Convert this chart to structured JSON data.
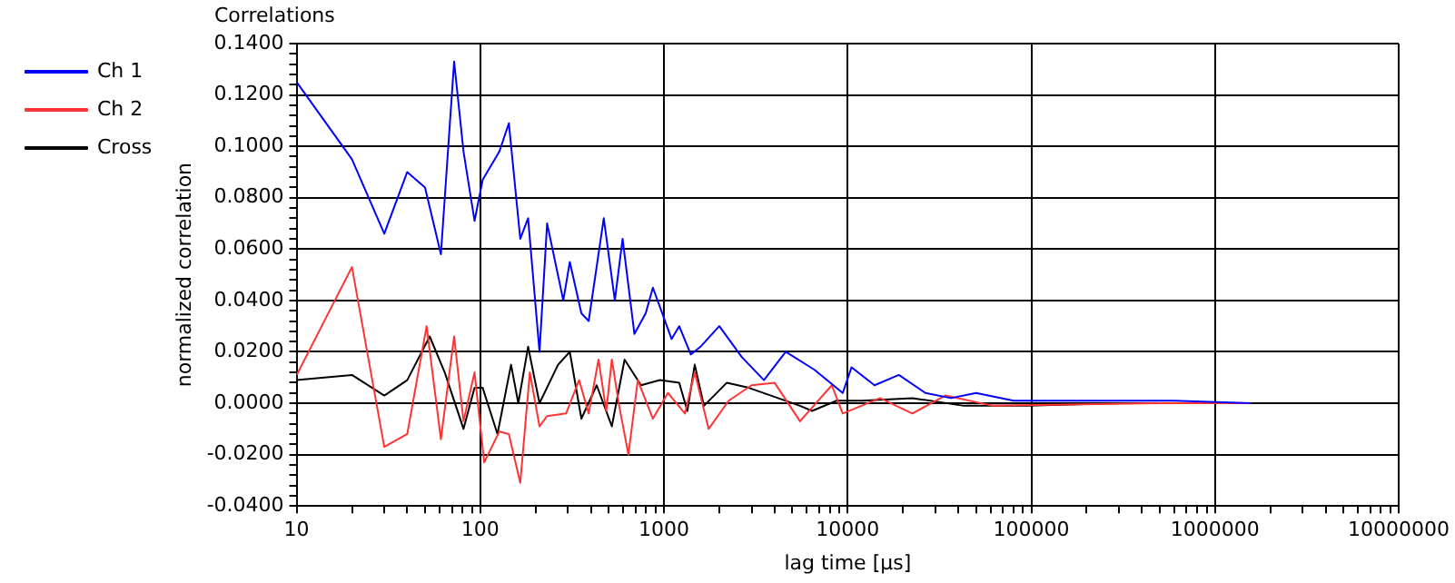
{
  "chart_data": {
    "type": "line",
    "title": "Correlations",
    "xlabel": "lag time [µs]",
    "ylabel": "normalized correlation",
    "log": "x",
    "grid": true,
    "legend": "top left",
    "marker": "none",
    "line_style": "solid",
    "xlim": [
      10,
      10000000
    ],
    "ylim": [
      -0.04,
      0.14
    ],
    "xticks": [
      10,
      {
        "value": 20,
        "label": null
      },
      {
        "value": 30,
        "label": null
      },
      {
        "value": 40,
        "label": null
      },
      {
        "value": 50,
        "label": null
      },
      {
        "value": 60,
        "label": null
      },
      {
        "value": 70,
        "label": null
      },
      {
        "value": 80,
        "label": null
      },
      {
        "value": 90,
        "label": null
      },
      100,
      {
        "value": 200,
        "label": null
      },
      {
        "value": 300,
        "label": null
      },
      {
        "value": 400,
        "label": null
      },
      {
        "value": 500,
        "label": null
      },
      {
        "value": 600,
        "label": null
      },
      {
        "value": 700,
        "label": null
      },
      {
        "value": 800,
        "label": null
      },
      {
        "value": 900,
        "label": null
      },
      1000,
      {
        "value": 2000,
        "label": null
      },
      {
        "value": 3000,
        "label": null
      },
      {
        "value": 4000,
        "label": null
      },
      {
        "value": 5000,
        "label": null
      },
      {
        "value": 6000,
        "label": null
      },
      {
        "value": 7000,
        "label": null
      },
      {
        "value": 8000,
        "label": null
      },
      {
        "value": 9000,
        "label": null
      },
      10000,
      {
        "value": 20000,
        "label": null
      },
      {
        "value": 30000,
        "label": null
      },
      {
        "value": 40000,
        "label": null
      },
      {
        "value": 50000,
        "label": null
      },
      {
        "value": 60000,
        "label": null
      },
      {
        "value": 70000,
        "label": null
      },
      {
        "value": 80000,
        "label": null
      },
      {
        "value": 90000,
        "label": null
      },
      100000,
      {
        "value": 200000,
        "label": null
      },
      {
        "value": 300000,
        "label": null
      },
      {
        "value": 400000,
        "label": null
      },
      {
        "value": 500000,
        "label": null
      },
      {
        "value": 600000,
        "label": null
      },
      {
        "value": 700000,
        "label": null
      },
      {
        "value": 800000,
        "label": null
      },
      {
        "value": 900000,
        "label": null
      },
      1000000,
      {
        "value": 2000000,
        "label": null
      },
      {
        "value": 3000000,
        "label": null
      },
      {
        "value": 4000000,
        "label": null
      },
      {
        "value": 5000000,
        "label": null
      },
      {
        "value": 6000000,
        "label": null
      },
      {
        "value": 7000000,
        "label": null
      },
      {
        "value": 8000000,
        "label": null
      },
      {
        "value": 9000000,
        "label": null
      },
      10000000
    ],
    "yticks": [
      {
        "value": -0.04,
        "label": "-0.0400"
      },
      {
        "value": -0.036,
        "label": null
      },
      {
        "value": -0.032,
        "label": null
      },
      {
        "value": -0.028,
        "label": null
      },
      {
        "value": -0.024,
        "label": null
      },
      {
        "value": -0.02,
        "label": "-0.0200"
      },
      {
        "value": -0.016,
        "label": null
      },
      {
        "value": -0.012,
        "label": null
      },
      {
        "value": -0.008,
        "label": null
      },
      {
        "value": -0.004,
        "label": null
      },
      {
        "value": 0,
        "label": "0.0000"
      },
      {
        "value": 0.004,
        "label": null
      },
      {
        "value": 0.008,
        "label": null
      },
      {
        "value": 0.012,
        "label": null
      },
      {
        "value": 0.016,
        "label": null
      },
      {
        "value": 0.02,
        "label": "0.0200"
      },
      {
        "value": 0.024,
        "label": null
      },
      {
        "value": 0.028,
        "label": null
      },
      {
        "value": 0.032,
        "label": null
      },
      {
        "value": 0.036,
        "label": null
      },
      {
        "value": 0.04,
        "label": "0.0400"
      },
      {
        "value": 0.044,
        "label": null
      },
      {
        "value": 0.048,
        "label": null
      },
      {
        "value": 0.052,
        "label": null
      },
      {
        "value": 0.056,
        "label": null
      },
      {
        "value": 0.06,
        "label": "0.0600"
      },
      {
        "value": 0.064,
        "label": null
      },
      {
        "value": 0.068,
        "label": null
      },
      {
        "value": 0.072,
        "label": null
      },
      {
        "value": 0.076,
        "label": null
      },
      {
        "value": 0.08,
        "label": "0.0800"
      },
      {
        "value": 0.084,
        "label": null
      },
      {
        "value": 0.088,
        "label": null
      },
      {
        "value": 0.092,
        "label": null
      },
      {
        "value": 0.096,
        "label": null
      },
      {
        "value": 0.1,
        "label": "0.1000"
      },
      {
        "value": 0.104,
        "label": null
      },
      {
        "value": 0.108,
        "label": null
      },
      {
        "value": 0.112,
        "label": null
      },
      {
        "value": 0.116,
        "label": null
      },
      {
        "value": 0.12,
        "label": "0.1200"
      },
      {
        "value": 0.124,
        "label": null
      },
      {
        "value": 0.128,
        "label": null
      },
      {
        "value": 0.132,
        "label": null
      },
      {
        "value": 0.136,
        "label": null
      },
      {
        "value": 0.14,
        "label": "0.1400"
      }
    ],
    "series": [
      {
        "name": "Ch 1",
        "color": "#0000ff",
        "x": [
          10,
          20,
          30,
          40,
          50,
          61,
          72,
          81,
          93,
          103,
          127,
          143,
          165,
          182,
          210,
          231,
          283,
          307,
          355,
          389,
          470,
          540,
          595,
          690,
          795,
          870,
          1100,
          1210,
          1400,
          1580,
          2000,
          2650,
          3500,
          4600,
          6600,
          9400,
          10500,
          14000,
          19000,
          26500,
          36500,
          50000,
          80000,
          140000,
          260000,
          600000,
          1570000
        ],
        "values": [
          0.125,
          0.095,
          0.066,
          0.09,
          0.084,
          0.058,
          0.133,
          0.098,
          0.071,
          0.087,
          0.098,
          0.109,
          0.064,
          0.072,
          0.02,
          0.07,
          0.04,
          0.055,
          0.035,
          0.032,
          0.072,
          0.04,
          0.064,
          0.027,
          0.035,
          0.045,
          0.025,
          0.03,
          0.019,
          0.022,
          0.03,
          0.018,
          0.009,
          0.02,
          0.013,
          0.004,
          0.014,
          0.007,
          0.011,
          0.004,
          0.002,
          0.004,
          0.001,
          0.001,
          0.001,
          0.001,
          0.0
        ]
      },
      {
        "name": "Ch 2",
        "color": "#ff3333",
        "x": [
          10,
          20,
          30,
          40,
          51,
          61,
          72,
          81,
          93,
          105,
          127,
          143,
          165,
          186,
          210,
          231,
          293,
          345,
          389,
          440,
          485,
          520,
          570,
          640,
          720,
          870,
          1050,
          1300,
          1470,
          1750,
          2250,
          3000,
          4000,
          5500,
          8200,
          9400,
          15000,
          22500,
          34000,
          62000,
          500000,
          1570000
        ],
        "values": [
          0.011,
          0.053,
          -0.017,
          -0.012,
          0.03,
          -0.014,
          0.026,
          -0.007,
          0.012,
          -0.023,
          -0.011,
          -0.012,
          -0.031,
          0.012,
          -0.009,
          -0.005,
          -0.004,
          0.009,
          -0.004,
          0.017,
          -0.003,
          0.017,
          -0.001,
          -0.02,
          0.009,
          -0.006,
          0.004,
          -0.004,
          0.012,
          -0.01,
          0.001,
          0.007,
          0.008,
          -0.007,
          0.007,
          -0.004,
          0.002,
          -0.004,
          0.003,
          -0.001,
          0.0,
          0.0
        ]
      },
      {
        "name": "Cross",
        "color": "#000000",
        "x": [
          10,
          20,
          30,
          40,
          53,
          64,
          81,
          93,
          103,
          124,
          147,
          161,
          182,
          210,
          265,
          307,
          355,
          430,
          520,
          610,
          750,
          950,
          1210,
          1340,
          1470,
          1650,
          2200,
          2900,
          5500,
          6400,
          8700,
          12000,
          22500,
          43000,
          95000,
          300000,
          1570000
        ],
        "values": [
          0.009,
          0.011,
          0.003,
          0.009,
          0.026,
          0.012,
          -0.01,
          0.006,
          0.006,
          -0.012,
          0.015,
          0.0,
          0.022,
          0.0,
          0.015,
          0.02,
          -0.006,
          0.007,
          -0.009,
          0.017,
          0.007,
          0.009,
          0.008,
          -0.003,
          0.015,
          -0.001,
          0.008,
          0.006,
          -0.001,
          -0.003,
          0.001,
          0.001,
          0.002,
          -0.001,
          -0.001,
          0.0,
          0.0
        ]
      }
    ]
  }
}
